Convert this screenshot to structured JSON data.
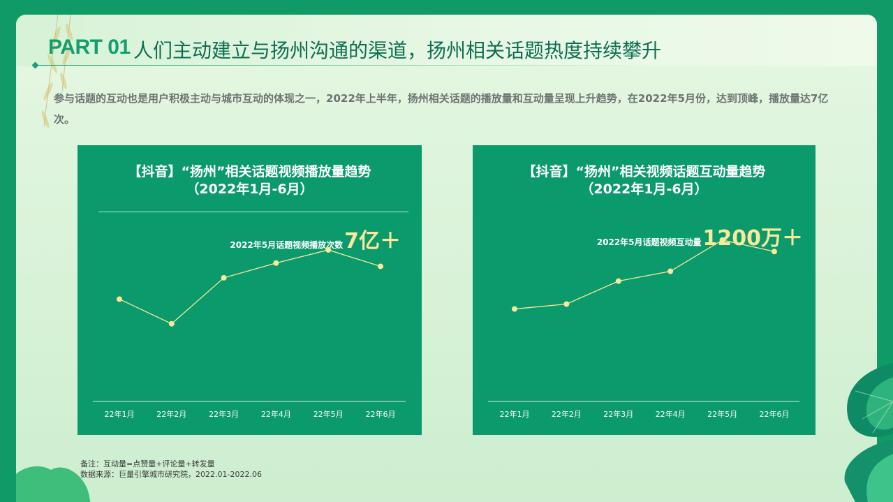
{
  "header": {
    "part": "PART 01",
    "title": "人们主动建立与扬州沟通的渠道，扬州相关话题热度持续攀升"
  },
  "description": "参与话题的互动也是用户积极主动与城市互动的体现之一，2022年上半年，扬州相关话题的播放量和互动量呈现上升趋势，在2022年5月份，达到顶峰，播放量达7亿次。",
  "colors": {
    "background": "#0f9a68",
    "card": "#0a9a6c",
    "line": "#fbe89a",
    "highlight": "#fbe89a"
  },
  "chart_data": [
    {
      "type": "line",
      "title": "【抖音】“扬州”相关话题视频播放量趋势",
      "subtitle": "（2022年1月-6月）",
      "categories": [
        "22年1月",
        "22年2月",
        "22年3月",
        "22年4月",
        "22年5月",
        "22年6月"
      ],
      "values": [
        53,
        38,
        66,
        75,
        83,
        73
      ],
      "ylim": [
        0,
        100
      ],
      "highlight_label": "2022年5月话题视频播放次数",
      "highlight_value": "7亿＋"
    },
    {
      "type": "line",
      "title": "【抖音】“扬州”相关视频话题互动量趋势",
      "subtitle": "（2022年1月-6月）",
      "categories": [
        "22年1月",
        "22年2月",
        "22年3月",
        "22年4月",
        "22年5月",
        "22年6月"
      ],
      "values": [
        47,
        50,
        64,
        70,
        89,
        82
      ],
      "ylim": [
        0,
        100
      ],
      "highlight_label": "2022年5月话题视频互动量",
      "highlight_value": "1200万＋"
    }
  ],
  "notes": {
    "line1": "备注：互动量=点赞量+评论量+转发量",
    "line2": "数据来源：巨量引擎城市研究院，2022.01-2022.06"
  }
}
